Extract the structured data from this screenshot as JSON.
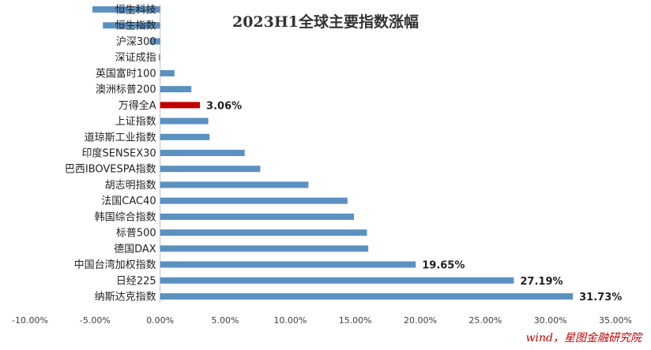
{
  "chart_data": {
    "type": "bar",
    "orientation": "horizontal",
    "title": "2023H1全球主要指数涨幅",
    "categories": [
      "恒生科技",
      "恒生指数",
      "沪深300",
      "深证成指",
      "英国富时100",
      "澳洲标普200",
      "万得全A",
      "上证指数",
      "道琼斯工业指数",
      "印度SENSEX30",
      "巴西IBOVESPA指数",
      "胡志明指数",
      "法国CAC40",
      "韩国综合指数",
      "标普500",
      "德国DAX",
      "中国台湾加权指数",
      "日经225",
      "纳斯达克指数"
    ],
    "values": [
      -5.2,
      -4.4,
      -0.8,
      -0.1,
      1.1,
      2.4,
      3.06,
      3.7,
      3.8,
      6.5,
      7.7,
      11.4,
      14.4,
      14.9,
      15.9,
      16.0,
      19.65,
      27.19,
      31.73
    ],
    "highlight_category": "万得全A",
    "data_labels": [
      {
        "category": "万得全A",
        "text": "3.06%"
      },
      {
        "category": "中国台湾加权指数",
        "text": "19.65%"
      },
      {
        "category": "日经225",
        "text": "27.19%"
      },
      {
        "category": "纳斯达克指数",
        "text": "31.73%"
      }
    ],
    "xlim": [
      -10,
      35
    ],
    "x_ticks": [
      -10,
      -5,
      0,
      5,
      10,
      15,
      20,
      25,
      30,
      35
    ],
    "x_tick_labels": [
      "-10.00%",
      "-5.00%",
      "0.00%",
      "5.00%",
      "10.00%",
      "15.00%",
      "20.00%",
      "25.00%",
      "30.00%",
      "35.00%"
    ],
    "grid": false,
    "legend": "none",
    "colors": {
      "bar": "#5b91c1",
      "highlight": "#c00000",
      "axis": "#bfbfbf"
    }
  },
  "source_note": "wind，星图金融研究院"
}
